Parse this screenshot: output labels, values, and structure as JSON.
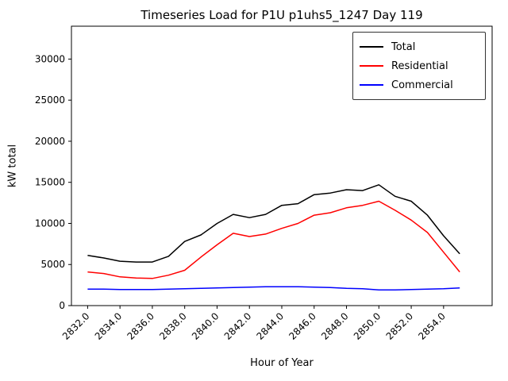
{
  "chart_data": {
    "type": "line",
    "title": "Timeseries Load for P1U p1uhs5_1247  Day 119",
    "xlabel": "Hour of Year",
    "ylabel": "kW total",
    "grid": false,
    "legend_position": "upper right",
    "xlim": [
      2831,
      2857
    ],
    "ylim": [
      0,
      34000
    ],
    "xticks": [
      2832,
      2834,
      2836,
      2838,
      2840,
      2842,
      2844,
      2846,
      2848,
      2850,
      2852,
      2854
    ],
    "yticks": [
      0,
      5000,
      10000,
      15000,
      20000,
      25000,
      30000
    ],
    "x": [
      2832,
      2833,
      2834,
      2835,
      2836,
      2837,
      2838,
      2839,
      2840,
      2841,
      2842,
      2843,
      2844,
      2845,
      2846,
      2847,
      2848,
      2849,
      2850,
      2851,
      2852,
      2853,
      2854,
      2855
    ],
    "series": [
      {
        "name": "Total",
        "color": "#000000",
        "values": [
          6100,
          5800,
          5400,
          5300,
          5300,
          6000,
          7800,
          8600,
          10000,
          11100,
          10700,
          11100,
          12200,
          12400,
          13500,
          13700,
          14100,
          14000,
          14700,
          13300,
          12700,
          11000,
          8500,
          6300
        ]
      },
      {
        "name": "Residential",
        "color": "#ff0000",
        "values": [
          4100,
          3900,
          3500,
          3350,
          3300,
          3700,
          4300,
          5900,
          7400,
          8800,
          8400,
          8700,
          9400,
          10000,
          11000,
          11300,
          11900,
          12200,
          12700,
          11600,
          10400,
          8900,
          6500,
          4100
        ]
      },
      {
        "name": "Commercial",
        "color": "#0000ff",
        "values": [
          2000,
          2000,
          1950,
          1950,
          1950,
          2000,
          2050,
          2100,
          2150,
          2200,
          2250,
          2300,
          2300,
          2300,
          2250,
          2200,
          2100,
          2050,
          1900,
          1900,
          1950,
          2000,
          2050,
          2150
        ]
      }
    ]
  }
}
